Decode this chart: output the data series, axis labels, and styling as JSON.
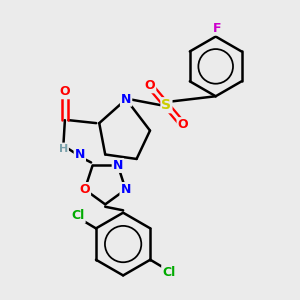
{
  "background_color": "#ebebeb",
  "atom_colors": {
    "C": "#000000",
    "N": "#0000ff",
    "O": "#ff0000",
    "S": "#cccc00",
    "F": "#cc00cc",
    "Cl": "#00aa00",
    "H": "#7aa0aa"
  },
  "bond_color": "#000000",
  "bond_width": 1.8,
  "fig_bg": "#ebebeb"
}
